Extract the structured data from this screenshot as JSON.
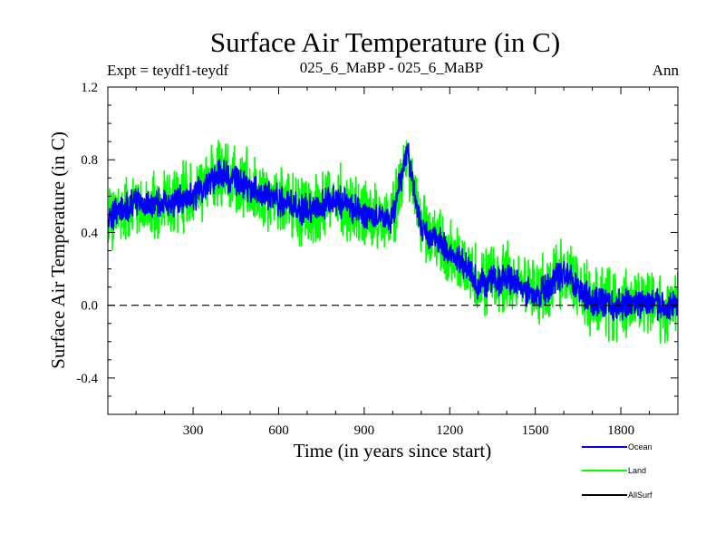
{
  "chart_data": {
    "type": "line",
    "title": "Surface Air Temperature (in C)",
    "left_label": "Expt = teydf1-teydf",
    "center_label": "025_6_MaBP - 025_6_MaBP",
    "right_label": "Ann",
    "xlabel": "Time (in years since start)",
    "ylabel": "Surface Air Temperature (in C)",
    "xlim": [
      1,
      2000
    ],
    "ylim": [
      -0.6,
      1.2
    ],
    "x_ticks": [
      300,
      600,
      900,
      1200,
      1500,
      1800
    ],
    "y_ticks": [
      -0.4,
      0.0,
      0.4,
      0.8,
      1.2
    ],
    "y_tick_labels": [
      "-0.4",
      "0.0",
      "0.4",
      "0.8",
      "1.2"
    ],
    "zero_line": true,
    "series": [
      {
        "name": "Land",
        "color": "#00ff00",
        "trend_x": [
          1,
          100,
          200,
          300,
          400,
          500,
          600,
          700,
          800,
          900,
          1000,
          1050,
          1100,
          1200,
          1300,
          1400,
          1500,
          1600,
          1700,
          1800,
          1900,
          2000
        ],
        "trend_y": [
          0.48,
          0.58,
          0.55,
          0.6,
          0.72,
          0.65,
          0.58,
          0.52,
          0.58,
          0.5,
          0.48,
          0.85,
          0.42,
          0.3,
          0.12,
          0.15,
          0.05,
          0.18,
          0.02,
          0.0,
          0.02,
          -0.02
        ],
        "noise_amplitude": 0.18
      },
      {
        "name": "Ocean",
        "color": "#0000ff",
        "trend_x": [
          1,
          100,
          200,
          300,
          400,
          500,
          600,
          700,
          800,
          900,
          1000,
          1050,
          1100,
          1200,
          1300,
          1400,
          1500,
          1600,
          1700,
          1800,
          1900,
          2000
        ],
        "trend_y": [
          0.48,
          0.58,
          0.55,
          0.6,
          0.72,
          0.65,
          0.58,
          0.52,
          0.58,
          0.5,
          0.48,
          0.85,
          0.42,
          0.3,
          0.12,
          0.15,
          0.05,
          0.18,
          0.02,
          0.0,
          0.02,
          -0.02
        ],
        "noise_amplitude": 0.08
      },
      {
        "name": "AllSurf",
        "color": "#000000",
        "trend_x": [],
        "trend_y": [],
        "noise_amplitude": 0
      }
    ],
    "legend": [
      {
        "name": "Ocean",
        "color": "#0000ff"
      },
      {
        "name": "Land",
        "color": "#00ff00"
      },
      {
        "name": "AllSurf",
        "color": "#000000"
      }
    ]
  }
}
